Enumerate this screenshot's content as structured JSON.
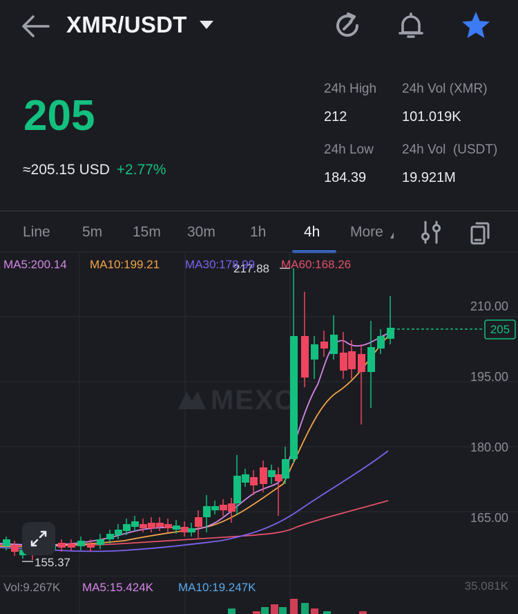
{
  "header": {
    "pair": "XMR/USDT",
    "icons": [
      "back-arrow-icon",
      "caret-down-icon",
      "refresh-icon",
      "bell-icon",
      "star-icon"
    ],
    "star_color": "#3d7af5"
  },
  "ticker": {
    "price": "205",
    "approx_usd": "≈205.15 USD",
    "change": "+2.77%",
    "price_color": "#13c07f"
  },
  "stats": {
    "high_label": "24h High",
    "high_value": "212",
    "vol_xmr_label": "24h Vol (XMR)",
    "vol_xmr_value": "101.019K",
    "low_label": "24h Low",
    "low_value": "184.39",
    "vol_usdt_label": "24h Vol  (USDT)",
    "vol_usdt_value": "19.921M"
  },
  "tabs": [
    "Line",
    "5m",
    "15m",
    "30m",
    "1h",
    "4h",
    "More"
  ],
  "active_tab": "4h",
  "ma_legend": {
    "ma5": "MA5:200.14",
    "ma10": "MA10:199.21",
    "ma30": "MA30:178.99",
    "ma60": "MA60:168.26",
    "colors": {
      "ma5": "#d486e8",
      "ma10": "#f3a447",
      "ma30": "#7b63f0",
      "ma60": "#e2516a"
    }
  },
  "watermark": "MEXC",
  "chart_data": {
    "type": "candlestick",
    "y_ticks": [
      "210.00",
      "195.00",
      "180.00",
      "165.00"
    ],
    "current_price_label": "205",
    "max_label": "217.88",
    "min_label": "155.37",
    "up_color": "#13c07f",
    "down_color": "#f0455f"
  },
  "volume": {
    "vol": "Vol:9.267K",
    "ma5": "MA5:15.424K",
    "ma10": "MA10:19.247K",
    "max": "35.081K",
    "colors": {
      "ma5": "#d486e8",
      "ma10": "#5aa9ee"
    }
  }
}
